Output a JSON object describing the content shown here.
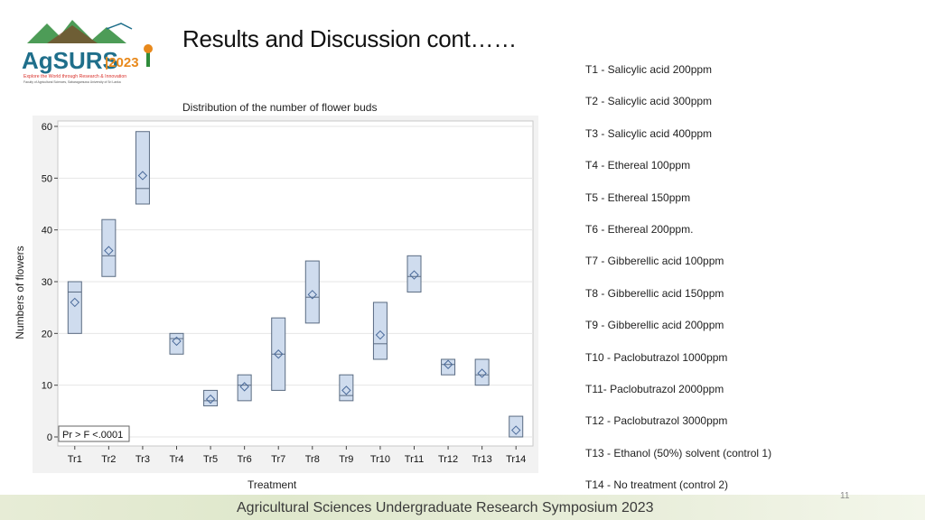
{
  "logo": {
    "wordmark": "AgSURS",
    "year": "|2023",
    "tagline": "Explore the World through Research & Innovation",
    "subtag": "Faculty of Agricultural Sciences, Sabaragamuwa University of Sri Lanka",
    "colors": {
      "green": "#2e8b3a",
      "teal": "#1f6f8b",
      "orange": "#e8891c",
      "mountain": "#7a4a2a"
    }
  },
  "slide": {
    "title": "Results and Discussion cont……",
    "footer": "Agricultural Sciences Undergraduate Research Symposium 2023",
    "page_number": "11"
  },
  "chart_caption": "Distribution of the number of flower buds",
  "chart_data": {
    "type": "box",
    "title": "Distribution of the number of flower buds",
    "xlabel": "Treatment",
    "ylabel": "Numbers of flowers",
    "ylim": [
      0,
      60
    ],
    "yticks": [
      "0",
      "10",
      "20",
      "30",
      "40",
      "50",
      "60"
    ],
    "annotation": "Pr > F  <.0001",
    "categories": [
      "Tr1",
      "Tr2",
      "Tr3",
      "Tr4",
      "Tr5",
      "Tr6",
      "Tr7",
      "Tr8",
      "Tr9",
      "Tr10",
      "Tr11",
      "Tr12",
      "Tr13",
      "Tr14"
    ],
    "boxes": [
      {
        "q1": 20,
        "median": 28,
        "q3": 30,
        "mean": 26
      },
      {
        "q1": 31,
        "median": 35,
        "q3": 42,
        "mean": 36
      },
      {
        "q1": 45,
        "median": 48,
        "q3": 59,
        "mean": 50.5
      },
      {
        "q1": 16,
        "median": 19,
        "q3": 20,
        "mean": 18.5
      },
      {
        "q1": 6,
        "median": 7,
        "q3": 9,
        "mean": 7.3
      },
      {
        "q1": 7,
        "median": 10,
        "q3": 12,
        "mean": 9.7
      },
      {
        "q1": 9,
        "median": 16,
        "q3": 23,
        "mean": 16
      },
      {
        "q1": 22,
        "median": 27,
        "q3": 34,
        "mean": 27.5
      },
      {
        "q1": 7,
        "median": 8,
        "q3": 12,
        "mean": 9
      },
      {
        "q1": 15,
        "median": 18,
        "q3": 26,
        "mean": 19.7
      },
      {
        "q1": 28,
        "median": 31,
        "q3": 35,
        "mean": 31.3
      },
      {
        "q1": 12,
        "median": 14,
        "q3": 15,
        "mean": 14
      },
      {
        "q1": 10,
        "median": 12,
        "q3": 15,
        "mean": 12.3
      },
      {
        "q1": 0,
        "median": 0,
        "q3": 4,
        "mean": 1.3
      }
    ],
    "colors": {
      "box_fill": "#cfdcee",
      "box_stroke": "#5a6b82",
      "mean_marker": "#4a6a9a",
      "plot_bg": "#ffffff",
      "grid": "#e6e6e6"
    }
  },
  "legend": [
    "T1 - Salicylic acid 200ppm",
    "T2 - Salicylic acid 300ppm",
    "T3 - Salicylic acid 400ppm",
    "T4 - Ethereal 100ppm",
    "T5 - Ethereal  150ppm",
    "T6 - Ethereal 200ppm.",
    "T7 - Gibberellic acid 100ppm",
    "T8 - Gibberellic acid 150ppm",
    "T9 - Gibberellic acid 200ppm",
    "T10 - Paclobutrazol 1000ppm",
    "T11- Paclobutrazol 2000ppm",
    "T12 - Paclobutrazol  3000ppm",
    "T13 - Ethanol (50%) solvent (control 1)",
    "T14 - No treatment (control 2)"
  ]
}
